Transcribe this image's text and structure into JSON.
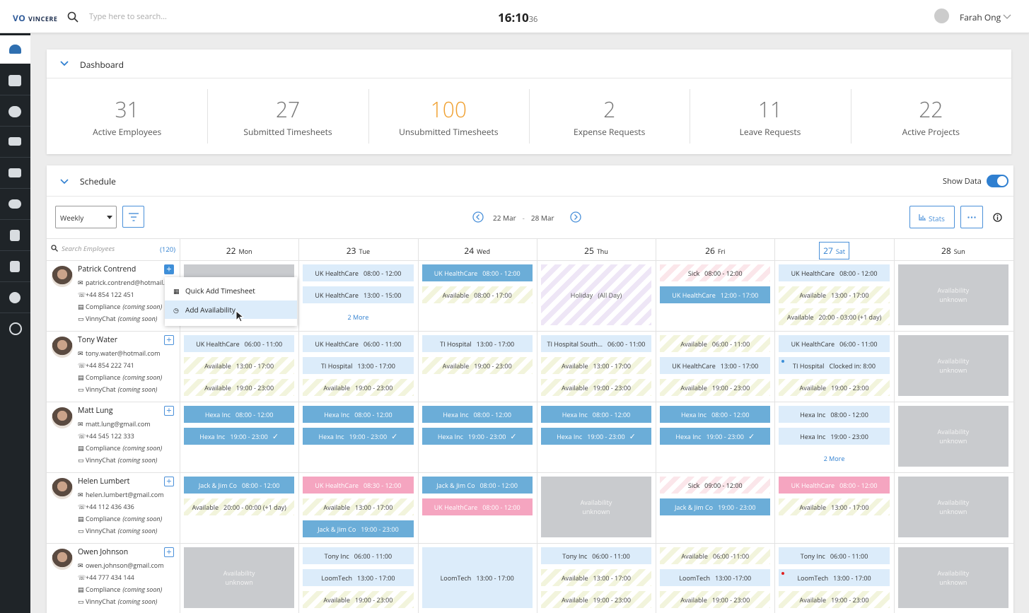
{
  "header": {
    "logo": "VINCERE",
    "search_placeholder": "Type here to search...",
    "time": "16:10",
    "seconds": "36",
    "user": "Farah Ong"
  },
  "dashboard": {
    "title": "Dashboard",
    "highlight_color": "#f0a030",
    "stats": [
      {
        "value": 31,
        "label": "Active Employees"
      },
      {
        "value": 27,
        "label": "Submitted Timesheets"
      },
      {
        "value": 100,
        "label": "Unsubmitted Timesheets",
        "highlight": true
      },
      {
        "value": 2,
        "label": "Expense Requests"
      },
      {
        "value": 11,
        "label": "Leave Requests"
      },
      {
        "value": 22,
        "label": "Active Projects"
      }
    ]
  },
  "schedule": {
    "title": "Schedule",
    "show_data": "Show Data",
    "view": "Weekly",
    "date_from": "22 Mar",
    "separator": "-",
    "date_to": "28 Mar",
    "stats_button": "Stats",
    "search_placeholder": "Search Employees",
    "count": "(120)",
    "compliance": "Compliance",
    "coming_soon": "(coming soon)",
    "chat": "VinnyChat",
    "days": [
      {
        "day": 22,
        "name": "Mon"
      },
      {
        "day": 23,
        "name": "Tue"
      },
      {
        "day": 24,
        "name": "Wed"
      },
      {
        "day": 25,
        "name": "Thu"
      },
      {
        "day": 26,
        "name": "Fri"
      },
      {
        "day": 27,
        "name": "Sat",
        "today": true
      },
      {
        "day": 28,
        "name": "Sun"
      }
    ],
    "menu": [
      "Quick Add Timesheet",
      "Add Availability"
    ],
    "employees": [
      {
        "name": "Patrick Contrend",
        "email": "patrick.contrend@hotmail...",
        "phone": "+44 854 122 451",
        "menu_open": true,
        "cells": [
          [
            {
              "kind": "unknown"
            }
          ],
          [
            {
              "label": "UK HealthCare",
              "time": "08:00 - 12:00",
              "kind": "booked"
            },
            {
              "label": "UK HealthCare",
              "time": "13:00 - 15:00",
              "kind": "booked"
            },
            {
              "label": "2 More",
              "kind": "more"
            }
          ],
          [
            {
              "label": "UK HealthCare",
              "time": "08:00 - 12:00",
              "kind": "confirmed"
            },
            {
              "label": "Available",
              "time": "08:00 - 17:00",
              "kind": "available"
            }
          ],
          [
            {
              "label": "Holiday",
              "time": "(All Day)",
              "kind": "holiday"
            }
          ],
          [
            {
              "label": "Sick",
              "time": "08:00 - 12:00",
              "kind": "sick"
            },
            {
              "label": "UK HealthCare",
              "time": "12:00 - 17:00",
              "kind": "confirmed"
            }
          ],
          [
            {
              "label": "UK HealthCare",
              "time": "08:00 - 12:00",
              "kind": "booked"
            },
            {
              "label": "Available",
              "time": "13:00 - 17:00",
              "kind": "available"
            },
            {
              "label": "Available",
              "time": "20:00 - 03:00 (+1 day)",
              "kind": "available"
            }
          ],
          [
            {
              "label": "Availability unknown",
              "kind": "unknown"
            }
          ]
        ]
      },
      {
        "name": "Tony Water",
        "email": "tony.water@hotmail.com",
        "phone": "+44 854 222 741",
        "cells": [
          [
            {
              "label": "UK HealthCare",
              "time": "06:00 - 11:00",
              "kind": "booked"
            },
            {
              "label": "Available",
              "time": "13:00 - 17:00",
              "kind": "available"
            },
            {
              "label": "Available",
              "time": "19:00 - 23:00",
              "kind": "available"
            }
          ],
          [
            {
              "label": "UK HealthCare",
              "time": "06:00 - 11:00",
              "kind": "booked"
            },
            {
              "label": "TI Hospital",
              "time": "13:00 - 17:00",
              "kind": "booked"
            },
            {
              "label": "Available",
              "time": "19:00 - 23:00",
              "kind": "available"
            }
          ],
          [
            {
              "label": "TI Hospital",
              "time": "13:00 - 17:00",
              "kind": "booked"
            },
            {
              "label": "Available",
              "time": "19:00 - 23:00",
              "kind": "available"
            }
          ],
          [
            {
              "label": "TI Hospital South...",
              "time": "06:00 - 11:00",
              "kind": "booked"
            },
            {
              "label": "Available",
              "time": "13:00 - 17:00",
              "kind": "available"
            },
            {
              "label": "Available",
              "time": "19:00 - 23:00",
              "kind": "available"
            }
          ],
          [
            {
              "label": "Available",
              "time": "06:00 - 11:00",
              "kind": "available"
            },
            {
              "label": "UK HealthCare",
              "time": "13:00 - 17:00",
              "kind": "booked"
            },
            {
              "label": "Available",
              "time": "19:00 - 23:00",
              "kind": "available"
            }
          ],
          [
            {
              "label": "UK HealthCare",
              "time": "06:00 - 11:00",
              "kind": "booked"
            },
            {
              "label": "TI Hospital",
              "time": "Clocked in: 8:00",
              "kind": "booked",
              "dot": "#3d8fd8"
            },
            {
              "label": "Available",
              "time": "19:00 - 23:00",
              "kind": "available"
            }
          ],
          [
            {
              "label": "Availability unknown",
              "kind": "unknown"
            }
          ]
        ]
      },
      {
        "name": "Matt Lung",
        "email": "matt.lung@gmail.com",
        "phone": "+44 545 122 333",
        "cells": [
          [
            {
              "label": "Hexa Inc",
              "time": "08:00 - 12:00",
              "kind": "confirmed"
            },
            {
              "label": "Hexa Inc",
              "time": "19:00 - 23:00",
              "kind": "confirmed",
              "check": true
            }
          ],
          [
            {
              "label": "Hexa Inc",
              "time": "08:00 - 12:00",
              "kind": "confirmed"
            },
            {
              "label": "Hexa Inc",
              "time": "19:00 - 23:00",
              "kind": "confirmed",
              "check": true
            }
          ],
          [
            {
              "label": "Hexa Inc",
              "time": "08:00 - 12:00",
              "kind": "confirmed"
            },
            {
              "label": "Hexa Inc",
              "time": "19:00 - 23:00",
              "kind": "confirmed",
              "check": true
            }
          ],
          [
            {
              "label": "Hexa Inc",
              "time": "08:00 - 12:00",
              "kind": "confirmed"
            },
            {
              "label": "Hexa Inc",
              "time": "19:00 - 23:00",
              "kind": "confirmed",
              "check": true
            }
          ],
          [
            {
              "label": "Hexa Inc",
              "time": "08:00 - 12:00",
              "kind": "confirmed"
            },
            {
              "label": "Hexa Inc",
              "time": "19:00 - 23:00",
              "kind": "confirmed",
              "check": true
            }
          ],
          [
            {
              "label": "Hexa Inc",
              "time": "08:00 - 12:00",
              "kind": "booked"
            },
            {
              "label": "Hexa Inc",
              "time": "19:00 - 23:00",
              "kind": "booked"
            },
            {
              "label": "2 More",
              "kind": "more"
            }
          ],
          [
            {
              "label": "Availability unknown",
              "kind": "unknown"
            }
          ]
        ]
      },
      {
        "name": "Helen Lumbert",
        "email": "helen.lumbert@gmail.com",
        "phone": "+44 112 436 436",
        "cells": [
          [
            {
              "label": "Jack & Jim Co",
              "time": "08:00 - 12:00",
              "kind": "confirmed"
            },
            {
              "label": "Available",
              "time": "20:00 - 00:00 (+1 day)",
              "kind": "available"
            }
          ],
          [
            {
              "label": "UK HealthCare",
              "time": "08:30 - 12:00",
              "kind": "pink"
            },
            {
              "label": "Available",
              "time": "13:00 - 17:00",
              "kind": "available"
            },
            {
              "label": "Jack & Jim Co",
              "time": "19:00 - 23:00",
              "kind": "confirmed"
            }
          ],
          [
            {
              "label": "Jack & Jim Co",
              "time": "08:00 - 12:00",
              "kind": "confirmed"
            },
            {
              "label": "UK HealthCare",
              "time": "08:00 - 12:00",
              "kind": "pink"
            }
          ],
          [
            {
              "label": "Availability unknown",
              "kind": "unknown"
            }
          ],
          [
            {
              "label": "Sick",
              "time": "09:00 - 12:00",
              "kind": "sick"
            },
            {
              "label": "Jack & Jim Co",
              "time": "19:00 - 23:00",
              "kind": "confirmed"
            }
          ],
          [
            {
              "label": "UK HealthCare",
              "time": "08:00 - 12:00",
              "kind": "pink"
            },
            {
              "label": "Available",
              "time": "13:00 - 17:00",
              "kind": "available"
            }
          ],
          [
            {
              "label": "Availability unknown",
              "kind": "unknown"
            }
          ]
        ]
      },
      {
        "name": "Owen Johnson",
        "email": "owen.johnson@gmail.com",
        "phone": "+44 777 434 144",
        "cells": [
          [
            {
              "label": "Availability unknown",
              "kind": "unknown"
            }
          ],
          [
            {
              "label": "Tony Inc",
              "time": "06:00 - 11:00",
              "kind": "booked"
            },
            {
              "label": "LoomTech",
              "time": "13:00 - 17:00",
              "kind": "booked"
            },
            {
              "label": "Available",
              "time": "19:00 - 23:00",
              "kind": "available"
            }
          ],
          [
            {
              "label": "LoomTech",
              "time": "13:00 - 17:00",
              "kind": "booked",
              "full": true
            }
          ],
          [
            {
              "label": "Tony Inc",
              "time": "06:00 - 11:00",
              "kind": "booked"
            },
            {
              "label": "Available",
              "time": "13:00 - 17:00",
              "kind": "available"
            },
            {
              "label": "Available",
              "time": "19:00 - 23:00",
              "kind": "available"
            }
          ],
          [
            {
              "label": "Available",
              "time": "06:00 -11:00",
              "kind": "available"
            },
            {
              "label": "LoomTech",
              "time": "13:00 -17:00",
              "kind": "booked"
            },
            {
              "label": "Available",
              "time": "19:00 - 23:00",
              "kind": "available"
            }
          ],
          [
            {
              "label": "Tony Inc",
              "time": "06:00 - 11:00",
              "kind": "booked"
            },
            {
              "label": "LoomTech",
              "time": "13:00 - 17:00",
              "kind": "booked",
              "dot": "#e02020"
            },
            {
              "label": "Available",
              "time": "19:00 - 23:00",
              "kind": "available"
            }
          ],
          [
            {
              "label": "Availability unknown",
              "kind": "unknown"
            }
          ]
        ]
      }
    ]
  }
}
